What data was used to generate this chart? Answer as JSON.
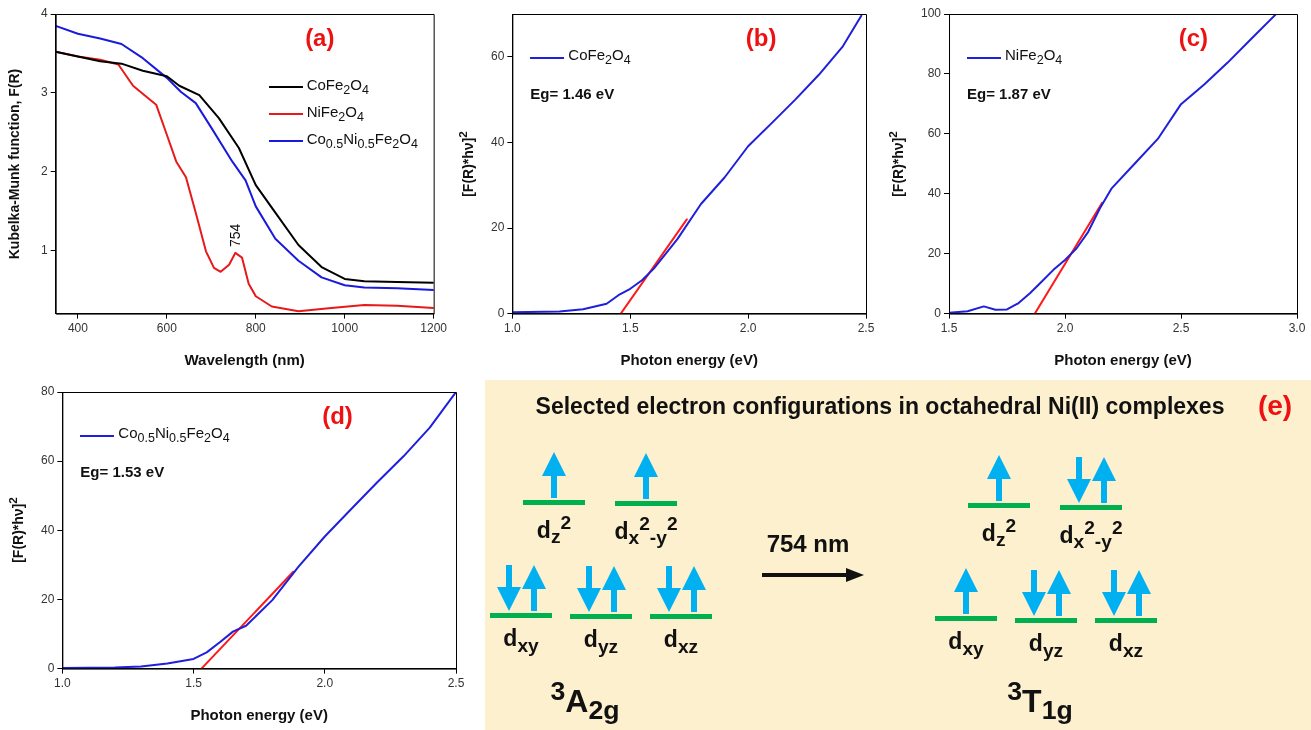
{
  "chart_data": [
    {
      "type": "line",
      "title": "(a)",
      "xlabel": "Wavelength (nm)",
      "ylabel": "Kubelka-Munk function, F(R)",
      "xlim": [
        350,
        1200
      ],
      "xticks": [
        400,
        600,
        800,
        1000,
        1200
      ],
      "ylim": [
        0.2,
        4
      ],
      "yticks": [
        1,
        2,
        3,
        4
      ],
      "legend": "top right",
      "series": [
        {
          "name": "CoFe$_{2}$O$_{4}$",
          "color": "#000000",
          "x": [
            350,
            400,
            450,
            498,
            546,
            600,
            628,
            673,
            717,
            762,
            800,
            844,
            896,
            948,
            1000,
            1044,
            1118,
            1200
          ],
          "values": [
            3.52,
            3.46,
            3.4,
            3.37,
            3.28,
            3.21,
            3.09,
            2.97,
            2.68,
            2.3,
            1.83,
            1.48,
            1.07,
            0.79,
            0.64,
            0.61,
            0.6,
            0.59
          ]
        },
        {
          "name": "NiFe$_{2}$O$_{4}$",
          "color": "#e8191a",
          "x": [
            350,
            400,
            450,
            491,
            524,
            554,
            576,
            598,
            621,
            643,
            665,
            688,
            706,
            721,
            740,
            754,
            769,
            784,
            800,
            836,
            896,
            970,
            1044,
            1118,
            1200
          ],
          "values": [
            3.52,
            3.46,
            3.42,
            3.36,
            3.09,
            2.95,
            2.85,
            2.5,
            2.13,
            1.93,
            1.48,
            0.99,
            0.78,
            0.73,
            0.82,
            0.97,
            0.91,
            0.58,
            0.42,
            0.29,
            0.23,
            0.27,
            0.31,
            0.3,
            0.27
          ]
        },
        {
          "name": "Co$_{0.5}$Ni$_{0.5}$Fe$_{2}$O$_{4}$",
          "color": "#1a1adc",
          "x": [
            350,
            400,
            450,
            498,
            546,
            600,
            632,
            665,
            702,
            747,
            777,
            800,
            844,
            896,
            948,
            1000,
            1044,
            1118,
            1200
          ],
          "values": [
            3.85,
            3.75,
            3.69,
            3.62,
            3.44,
            3.19,
            3.01,
            2.87,
            2.54,
            2.13,
            1.89,
            1.56,
            1.15,
            0.87,
            0.66,
            0.56,
            0.53,
            0.52,
            0.5
          ]
        }
      ],
      "annotations": [
        {
          "text": "754",
          "x": 754,
          "y": 0.97
        }
      ]
    },
    {
      "type": "line",
      "title": "(b)",
      "xlabel": "Photon energy (eV)",
      "ylabel": "[F(R)*hν]$^{2}$",
      "xlim": [
        1.0,
        2.5
      ],
      "xticks": [
        {
          "value": 1.0,
          "label": "1.0"
        },
        1.5,
        {
          "value": 2.0,
          "label": "2.0"
        },
        2.5
      ],
      "ylim": [
        0,
        70
      ],
      "yticks": [
        0,
        20,
        40,
        60
      ],
      "legend": "top left",
      "series": [
        {
          "name": "CoFe$_{2}$O$_{4}$",
          "color": "#1f1fdc",
          "x": [
            1.0,
            1.2,
            1.3,
            1.4,
            1.45,
            1.5,
            1.55,
            1.6,
            1.7,
            1.8,
            1.9,
            2.0,
            2.1,
            2.2,
            2.3,
            2.4,
            2.48
          ],
          "values": [
            0.3,
            0.5,
            1.0,
            2.3,
            4.3,
            5.8,
            7.8,
            10.5,
            17.4,
            25.6,
            31.8,
            39.1,
            44.5,
            50,
            55.8,
            62.3,
            69.6
          ]
        },
        {
          "type": "line",
          "color": "#ff1a1a",
          "x": [
            1.46,
            1.74
          ],
          "values": [
            0,
            22
          ]
        }
      ],
      "annotations": [
        "Eg= 1.46 eV"
      ]
    },
    {
      "type": "line",
      "title": "(c)",
      "xlabel": "Photon energy (eV)",
      "ylabel": "[F(R)*hν]$^{2}$",
      "xlim": [
        1.5,
        3.0
      ],
      "xticks": [
        1.5,
        {
          "value": 2.0,
          "label": "2.0"
        },
        2.5,
        {
          "value": 3.0,
          "label": "3.0"
        }
      ],
      "ylim": [
        0,
        100
      ],
      "yticks": [
        0,
        20,
        40,
        60,
        80,
        100
      ],
      "legend": "top left",
      "series": [
        {
          "name": "NiFe$_{2}$O$_{4}$",
          "color": "#1f1fdc",
          "x": [
            1.5,
            1.58,
            1.65,
            1.7,
            1.75,
            1.8,
            1.85,
            1.9,
            1.95,
            2.0,
            2.05,
            2.1,
            2.15,
            2.2,
            2.3,
            2.4,
            2.5,
            2.6,
            2.7,
            2.8,
            2.91
          ],
          "values": [
            0.3,
            0.8,
            2.4,
            1.3,
            1.4,
            3.5,
            6.9,
            10.7,
            14.6,
            17.9,
            21.8,
            27.3,
            35.1,
            41.7,
            50,
            58.3,
            69.9,
            76.5,
            83.7,
            91.5,
            100
          ]
        },
        {
          "type": "line",
          "color": "#ff1a1a",
          "x": [
            1.87,
            2.16
          ],
          "values": [
            0,
            37
          ]
        }
      ],
      "annotations": [
        "Eg= 1.87 eV"
      ]
    },
    {
      "type": "line",
      "title": "(d)",
      "xlabel": "Photon energy (eV)",
      "ylabel": "[F(R)*hν]$^{2}$",
      "xlim": [
        1.0,
        2.5
      ],
      "xticks": [
        {
          "value": 1.0,
          "label": "1.0"
        },
        1.5,
        {
          "value": 2.0,
          "label": "2.0"
        },
        2.5
      ],
      "ylim": [
        0,
        80
      ],
      "yticks": [
        0,
        20,
        40,
        60,
        80
      ],
      "legend": "top left",
      "series": [
        {
          "name": "Co$_{0.5}$Ni$_{0.5}$Fe$_{2}$O$_{4}$",
          "color": "#1f1fdc",
          "x": [
            1.0,
            1.2,
            1.3,
            1.4,
            1.5,
            1.55,
            1.6,
            1.65,
            1.7,
            1.8,
            1.9,
            2.0,
            2.1,
            2.2,
            2.3,
            2.4,
            2.5
          ],
          "values": [
            0.2,
            0.3,
            0.6,
            1.5,
            2.8,
            4.7,
            7.6,
            10.7,
            12.4,
            19.8,
            29.5,
            38.2,
            46.1,
            53.9,
            61.4,
            69.7,
            80
          ]
        },
        {
          "type": "line",
          "color": "#ff1a1a",
          "x": [
            1.53,
            1.88
          ],
          "values": [
            0,
            28
          ]
        }
      ],
      "annotations": [
        "Eg= 1.53 eV"
      ]
    },
    {
      "type": "other",
      "title": "Selected electron configurations in octahedral Ni(II) complexes",
      "annotations": [
        "(e)",
        "754 nm",
        "d$_{z}$$^{2}$",
        "d$_{x}$$^{2}$$_{-y}$$^{2}$",
        "d$_{xy}$",
        "d$_{yz}$",
        "d$_{xz}$",
        "$^{3}$A$_{2g}$",
        "d$_{z}$$^{2}$",
        "d$_{x}$$^{2}$$_{-y}$$^{2}$",
        "d$_{xy}$",
        "d$_{yz}$",
        "d$_{xz}$",
        "$^{3}$T$_{1g}$"
      ]
    }
  ]
}
